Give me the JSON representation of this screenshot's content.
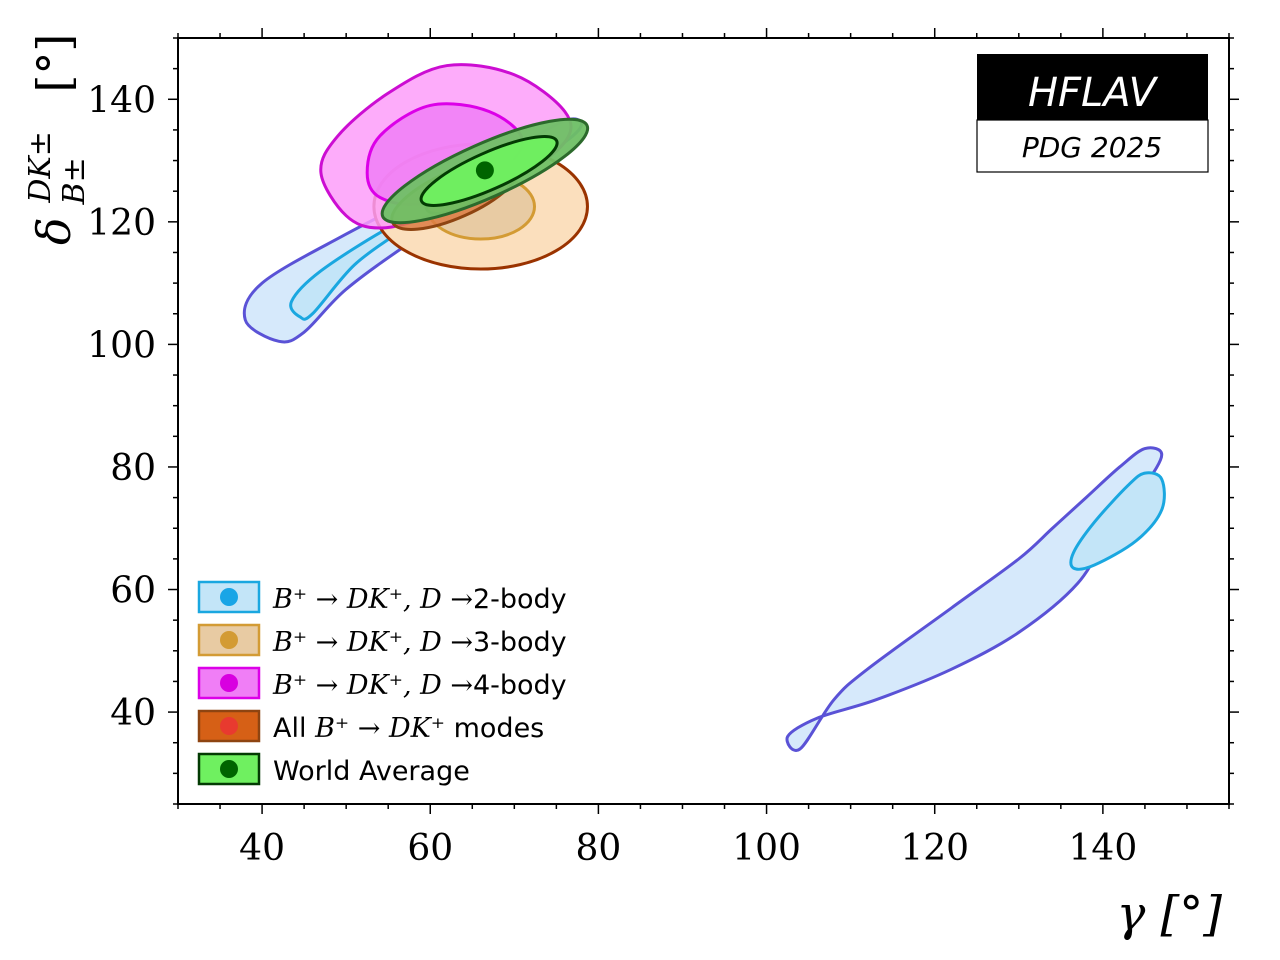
{
  "chart_data": {
    "type": "contour",
    "title": "",
    "xlabel": "γ [°]",
    "ylabel_main": "δ",
    "ylabel_sup": "DK±",
    "ylabel_sub": "B±",
    "ylabel_unit": "[°]",
    "xlim": [
      30,
      155
    ],
    "ylim": [
      25,
      150
    ],
    "x_ticks": [
      40,
      60,
      80,
      100,
      120,
      140
    ],
    "y_ticks": [
      40,
      60,
      80,
      100,
      120,
      140
    ],
    "x_tick_labels": [
      "40",
      "60",
      "80",
      "100",
      "120",
      "140"
    ],
    "y_tick_labels": [
      "40",
      "60",
      "80",
      "100",
      "120",
      "140"
    ],
    "x_minor_step": 5,
    "y_minor_step": 5,
    "grid": false,
    "legend_position": "bottom-left",
    "badge": {
      "title": "HFLAV",
      "subtitle": "PDG 2025"
    },
    "series": [
      {
        "name": "2-body",
        "legend": {
          "prefix": "",
          "math": "B⁺ → DK⁺, D →",
          "suffix": "2-body"
        },
        "fill_outer": "#d6e9fb",
        "stroke_outer": "#5a52d6",
        "fill_inner": "#c3e5f8",
        "stroke_inner": "#1aa7e0",
        "marker": "#19a5e6",
        "contours": [
          {
            "level": "outer",
            "points": [
              [
                42,
                100.5
              ],
              [
                38,
                104
              ],
              [
                40,
                110
              ],
              [
                50,
                118
              ],
              [
                60,
                125
              ],
              [
                70,
                132
              ],
              [
                76,
                136.5
              ],
              [
                78,
                136
              ],
              [
                76,
                133
              ],
              [
                68,
                126
              ],
              [
                58,
                117
              ],
              [
                50,
                109
              ],
              [
                45,
                102
              ]
            ]
          },
          {
            "level": "inner",
            "points": [
              [
                44.5,
                104.5
              ],
              [
                43.5,
                107
              ],
              [
                47,
                112
              ],
              [
                55,
                119
              ],
              [
                60,
                122
              ],
              [
                57,
                119
              ],
              [
                51,
                113
              ],
              [
                46,
                105
              ]
            ]
          },
          {
            "level": "outer",
            "points": [
              [
                104,
                34
              ],
              [
                102.5,
                36
              ],
              [
                106,
                39
              ],
              [
                113,
                42
              ],
              [
                122,
                47
              ],
              [
                130,
                53
              ],
              [
                137,
                61
              ],
              [
                141,
                70
              ],
              [
                145,
                77
              ],
              [
                147,
                82
              ],
              [
                145,
                83
              ],
              [
                142,
                80
              ],
              [
                138,
                75
              ],
              [
                134,
                70
              ],
              [
                130,
                65
              ],
              [
                122,
                57
              ],
              [
                112,
                47
              ],
              [
                108,
                42
              ]
            ]
          },
          {
            "level": "inner",
            "points": [
              [
                136.5,
                63.5
              ],
              [
                136.5,
                66
              ],
              [
                139,
                71
              ],
              [
                143,
                77
              ],
              [
                145,
                79
              ],
              [
                147,
                78
              ],
              [
                147,
                73
              ],
              [
                144,
                68
              ],
              [
                139,
                64
              ]
            ]
          }
        ]
      },
      {
        "name": "3-body",
        "legend": {
          "prefix": "",
          "math": "B⁺ → DK⁺, D →",
          "suffix": "3-body"
        },
        "fill_outer": "#fbdfbd",
        "stroke_outer": "#9a3300",
        "fill_inner": "#e8cba3",
        "stroke_inner": "#d39b34",
        "marker": "#d39b34",
        "contours": [
          {
            "level": "outer",
            "ellipse": {
              "cx": 66,
              "cy": 122.5,
              "rx": 12.7,
              "ry": 10.2
            }
          },
          {
            "level": "inner",
            "ellipse": {
              "cx": 66,
              "cy": 122.5,
              "rx": 6.4,
              "ry": 5.3
            }
          }
        ]
      },
      {
        "name": "4-body",
        "legend": {
          "prefix": "",
          "math": "B⁺ → DK⁺, D →",
          "suffix": "4-body"
        },
        "fill_outer": "#fd9ef9",
        "stroke_outer": "#cc0dd2",
        "fill_inner": "#f07ef6",
        "stroke_inner": "#dc00e8",
        "marker": "#d800e0",
        "contours": [
          {
            "level": "outer",
            "points": [
              [
                47,
                128
              ],
              [
                49,
                134
              ],
              [
                55,
                141
              ],
              [
                62,
                145.5
              ],
              [
                70,
                144
              ],
              [
                76,
                138
              ],
              [
                76,
                133
              ],
              [
                70,
                127
              ],
              [
                60,
                121
              ],
              [
                54,
                119
              ],
              [
                50,
                121
              ]
            ]
          },
          {
            "level": "inner",
            "points": [
              [
                52.5,
                128
              ],
              [
                54,
                134
              ],
              [
                60,
                139
              ],
              [
                67,
                138
              ],
              [
                71,
                133
              ],
              [
                67,
                127
              ],
              [
                59,
                123
              ],
              [
                54,
                124
              ]
            ]
          }
        ]
      },
      {
        "name": "All B+ -> DK+",
        "legend": {
          "prefix": "All",
          "math": "B⁺ → DK⁺",
          "suffix": "modes"
        },
        "fill_outer": "#dc7c44",
        "stroke_outer": "#8e4411",
        "fill_inner": "#d66016",
        "stroke_inner": "#8e4411",
        "marker": "#e83a2f",
        "contours": [
          {
            "level": "outer",
            "ellipse": {
              "cx": 63,
              "cy": 124.5,
              "rx": 8.2,
              "ry": 3.8,
              "rotate": 24
            }
          },
          {
            "level": "inner",
            "ellipse": {
              "cx": 63.5,
              "cy": 124.5,
              "rx": 4.3,
              "ry": 2.2,
              "rotate": 24
            }
          }
        ]
      },
      {
        "name": "World Average",
        "legend": {
          "prefix": "World Average",
          "math": "",
          "suffix": ""
        },
        "fill_outer": "#6fc065",
        "stroke_outer": "#2c6a2c",
        "fill_inner": "#6ff060",
        "stroke_inner": "#033b03",
        "marker": "#006400",
        "center": [
          66.5,
          128.4
        ],
        "contours": [
          {
            "level": "outer",
            "ellipse": {
              "cx": 66.5,
              "cy": 128.3,
              "rx": 13.3,
              "ry": 4.4,
              "rotate": 24
            }
          },
          {
            "level": "inner",
            "ellipse": {
              "cx": 67,
              "cy": 128.3,
              "rx": 8.8,
              "ry": 3.0,
              "rotate": 24
            }
          }
        ]
      }
    ]
  }
}
